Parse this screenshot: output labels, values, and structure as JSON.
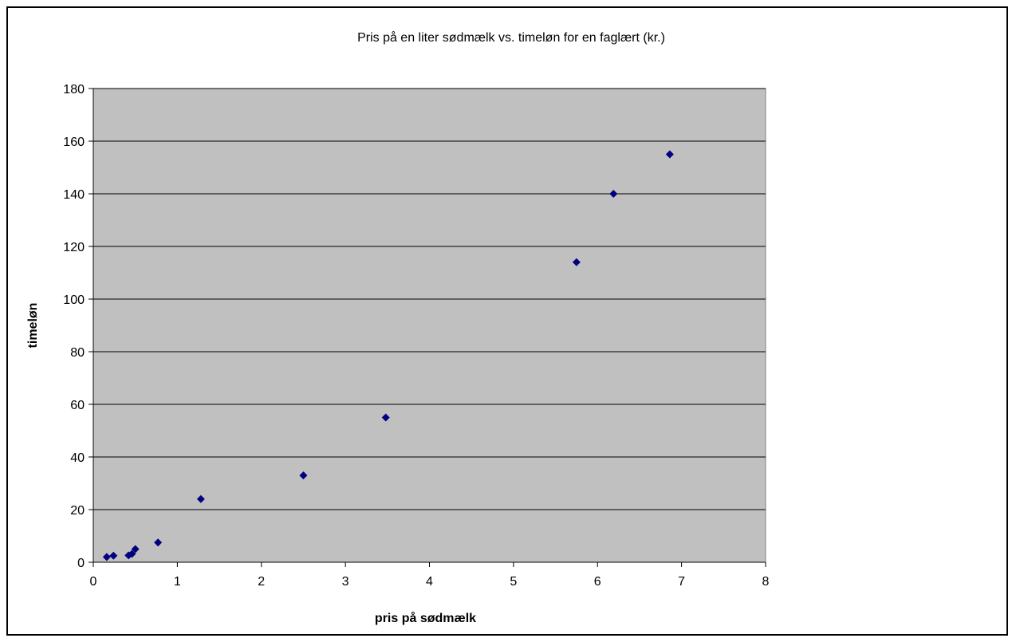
{
  "chart_data": {
    "type": "scatter",
    "title": "Pris på en liter sødmælk vs. timeløn for en faglært (kr.)",
    "xlabel": "pris på sødmælk",
    "ylabel": "timeløn",
    "xlim": [
      0,
      8
    ],
    "ylim": [
      0,
      180
    ],
    "x_ticks": [
      0,
      1,
      2,
      3,
      4,
      5,
      6,
      7,
      8
    ],
    "y_ticks": [
      0,
      20,
      40,
      60,
      80,
      100,
      120,
      140,
      160,
      180
    ],
    "x_tick_labels": [
      "0",
      "1",
      "2",
      "3",
      "4",
      "5",
      "6",
      "7",
      "8"
    ],
    "y_tick_labels": [
      "0",
      "20",
      "40",
      "60",
      "80",
      "100",
      "120",
      "140",
      "160",
      "180"
    ],
    "grid": "horizontal",
    "legend": "none",
    "plot_background": "#c0c0c0",
    "marker_color": "#000080",
    "marker_shape": "diamond",
    "points": [
      {
        "x": 0.16,
        "y": 2.0
      },
      {
        "x": 0.24,
        "y": 2.5
      },
      {
        "x": 0.42,
        "y": 2.6
      },
      {
        "x": 0.46,
        "y": 3.2
      },
      {
        "x": 0.5,
        "y": 5.0
      },
      {
        "x": 0.77,
        "y": 7.5
      },
      {
        "x": 1.28,
        "y": 24
      },
      {
        "x": 2.5,
        "y": 33
      },
      {
        "x": 3.48,
        "y": 55
      },
      {
        "x": 5.75,
        "y": 114
      },
      {
        "x": 6.19,
        "y": 140
      },
      {
        "x": 6.86,
        "y": 155
      }
    ]
  }
}
